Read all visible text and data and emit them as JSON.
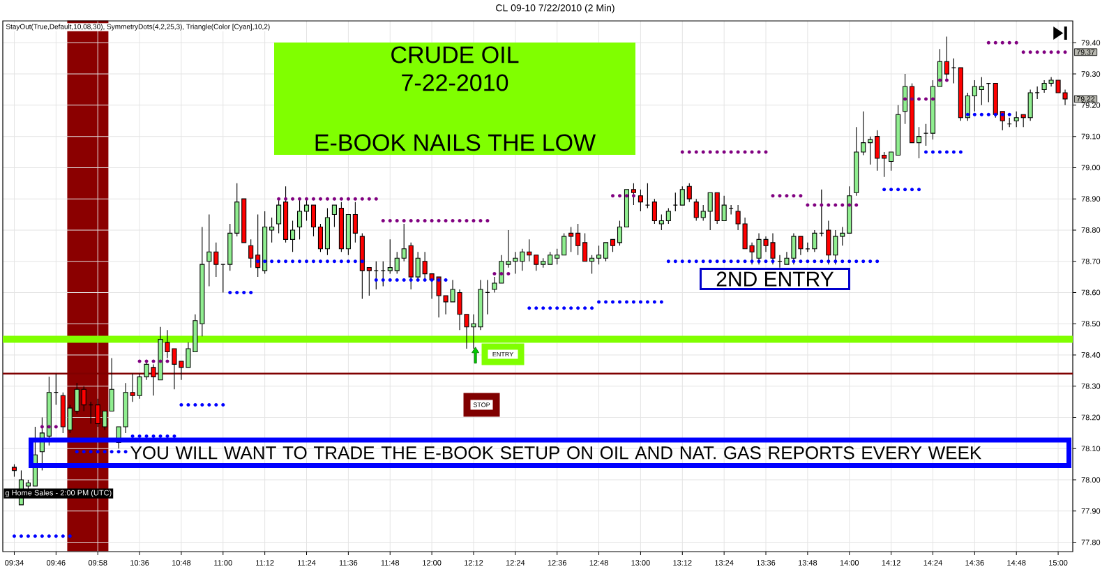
{
  "chart_data": {
    "type": "candlestick",
    "title": "CL 09-10  7/22/2010 (2 Min)",
    "subtitle": "StayOut(True,Default,10,08,30), SymmetryDots(4,2,25,3), Triangle(Color [Cyan],10,2)",
    "categories": [
      "09:34",
      null,
      null,
      null,
      null,
      null,
      "09:46",
      null,
      null,
      null,
      null,
      null,
      "09:58",
      null,
      null,
      null,
      null,
      null,
      "10:36",
      null,
      null,
      null,
      null,
      null,
      "10:48",
      null,
      null,
      null,
      null,
      null,
      "11:00",
      null,
      null,
      null,
      null,
      null,
      "11:12",
      null,
      null,
      null,
      null,
      null,
      "11:24",
      null,
      null,
      null,
      null,
      null,
      "11:36",
      null,
      null,
      null,
      null,
      null,
      "11:48",
      null,
      null,
      null,
      null,
      null,
      "12:00",
      null,
      null,
      null,
      null,
      null,
      "12:12",
      null,
      null,
      null,
      null,
      null,
      "12:24",
      null,
      null,
      null,
      null,
      null,
      "12:36",
      null,
      null,
      null,
      null,
      null,
      "12:48",
      null,
      null,
      null,
      null,
      null,
      "13:00",
      null,
      null,
      null,
      null,
      null,
      "13:12",
      null,
      null,
      null,
      null,
      null,
      "13:24",
      null,
      null,
      null,
      null,
      null,
      "13:36",
      null,
      null,
      null,
      null,
      null,
      "13:48",
      null,
      null,
      null,
      null,
      null,
      "14:00",
      null,
      null,
      null,
      null,
      null,
      "14:12",
      null,
      null,
      null,
      null,
      null,
      "14:24",
      null,
      null,
      null,
      null,
      null,
      "14:36",
      null,
      null,
      null,
      null,
      null,
      "14:48",
      null,
      null,
      null,
      null,
      null,
      "15:00",
      null
    ],
    "ohlc": [
      [
        78.04,
        78.05,
        78.01,
        78.03
      ],
      [
        77.92,
        78.03,
        77.92,
        78.0
      ],
      [
        77.98,
        78.0,
        77.97,
        77.99
      ],
      [
        77.98,
        78.17,
        77.98,
        78.08
      ],
      [
        78.09,
        78.2,
        78.03,
        78.15
      ],
      [
        78.14,
        78.33,
        78.11,
        78.28
      ],
      [
        78.28,
        78.34,
        78.24,
        78.28
      ],
      [
        78.27,
        78.28,
        78.15,
        78.17
      ],
      [
        78.16,
        78.24,
        78.15,
        78.23
      ],
      [
        78.22,
        78.31,
        78.21,
        78.29
      ],
      [
        78.29,
        78.3,
        78.22,
        78.24
      ],
      [
        78.24,
        78.25,
        78.18,
        78.24
      ],
      [
        78.24,
        78.26,
        78.17,
        78.18
      ],
      [
        78.17,
        78.22,
        78.16,
        78.22
      ],
      [
        78.22,
        78.39,
        78.22,
        78.29
      ],
      [
        78.12,
        78.17,
        78.1,
        78.17
      ],
      [
        78.17,
        78.31,
        78.15,
        78.28
      ],
      [
        78.28,
        78.34,
        78.25,
        78.27
      ],
      [
        78.27,
        78.34,
        78.26,
        78.33
      ],
      [
        78.33,
        78.38,
        78.32,
        78.37
      ],
      [
        78.36,
        78.37,
        78.27,
        78.33
      ],
      [
        78.32,
        78.49,
        78.32,
        78.45
      ],
      [
        78.44,
        78.48,
        78.39,
        78.41
      ],
      [
        78.42,
        78.42,
        78.29,
        78.37
      ],
      [
        78.38,
        78.38,
        78.32,
        78.36
      ],
      [
        78.36,
        78.44,
        78.36,
        78.42
      ],
      [
        78.41,
        78.53,
        78.41,
        78.51
      ],
      [
        78.5,
        78.81,
        78.46,
        78.69
      ],
      [
        78.7,
        78.85,
        78.62,
        78.73
      ],
      [
        78.73,
        78.76,
        78.65,
        78.69
      ],
      [
        78.69,
        78.69,
        78.6,
        78.69
      ],
      [
        78.69,
        78.82,
        78.67,
        78.79
      ],
      [
        78.79,
        78.95,
        78.78,
        78.89
      ],
      [
        78.9,
        78.9,
        78.76,
        78.76
      ],
      [
        78.75,
        78.77,
        78.68,
        78.71
      ],
      [
        78.72,
        78.85,
        78.65,
        78.68
      ],
      [
        78.67,
        78.86,
        78.66,
        78.81
      ],
      [
        78.8,
        78.84,
        78.76,
        78.81
      ],
      [
        78.82,
        78.9,
        78.79,
        78.88
      ],
      [
        78.89,
        78.94,
        78.76,
        78.77
      ],
      [
        78.77,
        78.83,
        78.73,
        78.8
      ],
      [
        78.81,
        78.9,
        78.77,
        78.86
      ],
      [
        78.86,
        78.9,
        78.83,
        78.88
      ],
      [
        78.88,
        78.88,
        78.78,
        78.81
      ],
      [
        78.81,
        78.82,
        78.73,
        78.74
      ],
      [
        78.74,
        78.87,
        78.72,
        78.84
      ],
      [
        78.85,
        78.88,
        78.81,
        78.88
      ],
      [
        78.87,
        78.89,
        78.73,
        78.74
      ],
      [
        78.74,
        78.85,
        78.72,
        78.85
      ],
      [
        78.85,
        78.89,
        78.76,
        78.79
      ],
      [
        78.78,
        78.79,
        78.58,
        78.67
      ],
      [
        78.68,
        78.68,
        78.59,
        78.67
      ],
      [
        78.67,
        78.7,
        78.61,
        78.67
      ],
      [
        78.67,
        78.7,
        78.62,
        78.67
      ],
      [
        78.67,
        78.77,
        78.66,
        78.68
      ],
      [
        78.67,
        78.73,
        78.66,
        78.71
      ],
      [
        78.71,
        78.82,
        78.7,
        78.74
      ],
      [
        78.75,
        78.76,
        78.61,
        78.65
      ],
      [
        78.65,
        78.73,
        78.64,
        78.71
      ],
      [
        78.7,
        78.73,
        78.64,
        78.66
      ],
      [
        78.66,
        78.66,
        78.58,
        78.64
      ],
      [
        78.65,
        78.65,
        78.52,
        78.59
      ],
      [
        78.59,
        78.59,
        78.53,
        78.57
      ],
      [
        78.57,
        78.64,
        78.57,
        78.61
      ],
      [
        78.6,
        78.61,
        78.48,
        78.53
      ],
      [
        78.53,
        78.53,
        78.42,
        78.49
      ],
      [
        78.49,
        78.53,
        78.42,
        78.5
      ],
      [
        78.49,
        78.64,
        78.48,
        78.61
      ],
      [
        78.6,
        78.64,
        78.53,
        78.6
      ],
      [
        78.61,
        78.65,
        78.6,
        78.63
      ],
      [
        78.63,
        78.72,
        78.63,
        78.7
      ],
      [
        78.69,
        78.8,
        78.68,
        78.7
      ],
      [
        78.7,
        78.73,
        78.66,
        78.71
      ],
      [
        78.7,
        78.74,
        78.67,
        78.73
      ],
      [
        78.73,
        78.77,
        78.7,
        78.72
      ],
      [
        78.72,
        78.72,
        78.67,
        78.69
      ],
      [
        78.69,
        78.71,
        78.68,
        78.7
      ],
      [
        78.69,
        78.73,
        78.69,
        78.72
      ],
      [
        78.71,
        78.74,
        78.69,
        78.72
      ],
      [
        78.72,
        78.79,
        78.72,
        78.78
      ],
      [
        78.79,
        78.81,
        78.73,
        78.78
      ],
      [
        78.79,
        78.82,
        78.72,
        78.75
      ],
      [
        78.76,
        78.79,
        78.7,
        78.7
      ],
      [
        78.7,
        78.72,
        78.66,
        78.71
      ],
      [
        78.71,
        78.75,
        78.69,
        78.72
      ],
      [
        78.71,
        78.76,
        78.7,
        78.76
      ],
      [
        78.77,
        78.77,
        78.73,
        78.75
      ],
      [
        78.76,
        78.83,
        78.75,
        78.81
      ],
      [
        78.81,
        78.93,
        78.81,
        78.93
      ],
      [
        78.93,
        78.95,
        78.88,
        78.92
      ],
      [
        78.91,
        78.93,
        78.86,
        78.89
      ],
      [
        78.88,
        78.95,
        78.87,
        78.88
      ],
      [
        78.89,
        78.9,
        78.82,
        78.83
      ],
      [
        78.82,
        78.85,
        78.8,
        78.83
      ],
      [
        78.83,
        78.87,
        78.82,
        78.86
      ],
      [
        78.88,
        78.92,
        78.86,
        78.88
      ],
      [
        78.88,
        78.94,
        78.88,
        78.93
      ],
      [
        78.94,
        78.95,
        78.89,
        78.9
      ],
      [
        78.89,
        78.9,
        78.83,
        78.84
      ],
      [
        78.84,
        78.88,
        78.83,
        78.86
      ],
      [
        78.86,
        78.92,
        78.8,
        78.92
      ],
      [
        78.92,
        78.92,
        78.82,
        78.83
      ],
      [
        78.83,
        78.91,
        78.83,
        78.88
      ],
      [
        78.87,
        78.88,
        78.85,
        78.87
      ],
      [
        78.86,
        78.88,
        78.8,
        78.82
      ],
      [
        78.82,
        78.84,
        78.74,
        78.74
      ],
      [
        78.75,
        78.76,
        78.69,
        78.73
      ],
      [
        78.71,
        78.79,
        78.69,
        78.77
      ],
      [
        78.77,
        78.78,
        78.73,
        78.75
      ],
      [
        78.76,
        78.79,
        78.69,
        78.71
      ],
      [
        78.7,
        78.72,
        78.68,
        78.7
      ],
      [
        78.69,
        78.73,
        78.69,
        78.71
      ],
      [
        78.71,
        78.79,
        78.69,
        78.78
      ],
      [
        78.78,
        78.78,
        78.72,
        78.74
      ],
      [
        78.74,
        78.76,
        78.73,
        78.74
      ],
      [
        78.74,
        78.8,
        78.73,
        78.79
      ],
      [
        78.79,
        78.93,
        78.78,
        78.79
      ],
      [
        78.8,
        78.83,
        78.69,
        78.72
      ],
      [
        78.72,
        78.8,
        78.69,
        78.78
      ],
      [
        78.78,
        78.81,
        78.75,
        78.79
      ],
      [
        78.79,
        78.94,
        78.79,
        78.91
      ],
      [
        78.92,
        79.13,
        78.91,
        79.05
      ],
      [
        79.05,
        79.18,
        79.04,
        79.08
      ],
      [
        79.08,
        79.1,
        79.01,
        79.09
      ],
      [
        79.1,
        79.12,
        78.99,
        79.03
      ],
      [
        79.04,
        79.05,
        78.97,
        79.03
      ],
      [
        79.02,
        79.05,
        78.99,
        79.05
      ],
      [
        79.04,
        79.2,
        79.04,
        79.17
      ],
      [
        79.18,
        79.3,
        79.14,
        79.26
      ],
      [
        79.26,
        79.27,
        79.08,
        79.08
      ],
      [
        79.08,
        79.13,
        79.03,
        79.1
      ],
      [
        79.11,
        79.14,
        79.07,
        79.11
      ],
      [
        79.11,
        79.28,
        79.09,
        79.26
      ],
      [
        79.26,
        79.38,
        79.26,
        79.34
      ],
      [
        79.34,
        79.42,
        79.28,
        79.3
      ],
      [
        79.32,
        79.35,
        79.27,
        79.32
      ],
      [
        79.32,
        79.32,
        79.15,
        79.16
      ],
      [
        79.16,
        79.24,
        79.15,
        79.23
      ],
      [
        79.23,
        79.28,
        79.18,
        79.26
      ],
      [
        79.25,
        79.29,
        79.2,
        79.26
      ],
      [
        79.27,
        79.27,
        79.21,
        79.27
      ],
      [
        79.27,
        79.27,
        79.16,
        79.17
      ],
      [
        79.18,
        79.18,
        79.12,
        79.15
      ],
      [
        79.14,
        79.16,
        79.13,
        79.14
      ],
      [
        79.15,
        79.18,
        79.13,
        79.16
      ],
      [
        79.17,
        79.17,
        79.13,
        79.16
      ],
      [
        79.16,
        79.25,
        79.15,
        79.24
      ],
      [
        79.24,
        79.26,
        79.22,
        79.24
      ],
      [
        79.25,
        79.28,
        79.24,
        79.27
      ],
      [
        79.27,
        79.29,
        79.26,
        79.28
      ],
      [
        79.28,
        79.28,
        79.24,
        79.24
      ],
      [
        79.24,
        79.25,
        79.2,
        79.22
      ]
    ],
    "colors": [
      "#ff0000",
      "#90ee90",
      "#90ee90",
      "#90ee90",
      "#90ee90",
      "#90ee90",
      "#000000",
      "#ff0000",
      "#90ee90",
      "#90ee90",
      "#ff0000",
      "#000000",
      "#ff0000",
      "#90ee90",
      "#90ee90",
      "#90ee90",
      "#90ee90",
      "#ff0000",
      "#90ee90",
      "#90ee90",
      "#ff0000",
      "#90ee90",
      "#ff0000",
      "#ff0000",
      "#ff0000",
      "#90ee90",
      "#90ee90",
      "#90ee90",
      "#90ee90",
      "#ff0000",
      "#000000",
      "#90ee90",
      "#90ee90",
      "#ff0000",
      "#ff0000",
      "#ff0000",
      "#90ee90",
      "#90ee90",
      "#90ee90",
      "#ff0000",
      "#90ee90",
      "#90ee90",
      "#90ee90",
      "#ff0000",
      "#ff0000",
      "#90ee90",
      "#90ee90",
      "#ff0000",
      "#90ee90",
      "#ff0000",
      "#ff0000",
      "#ff0000",
      "#000000",
      "#000000",
      "#90ee90",
      "#90ee90",
      "#90ee90",
      "#ff0000",
      "#90ee90",
      "#ff0000",
      "#ff0000",
      "#ff0000",
      "#ff0000",
      "#90ee90",
      "#ff0000",
      "#ff0000",
      "#90ee90",
      "#90ee90",
      "#000000",
      "#90ee90",
      "#90ee90",
      "#90ee90",
      "#90ee90",
      "#90ee90",
      "#ff0000",
      "#ff0000",
      "#90ee90",
      "#90ee90",
      "#90ee90",
      "#90ee90",
      "#ff0000",
      "#ff0000",
      "#ff0000",
      "#90ee90",
      "#90ee90",
      "#90ee90",
      "#ff0000",
      "#90ee90",
      "#90ee90",
      "#ff0000",
      "#ff0000",
      "#000000",
      "#ff0000",
      "#90ee90",
      "#90ee90",
      "#000000",
      "#90ee90",
      "#ff0000",
      "#ff0000",
      "#90ee90",
      "#90ee90",
      "#ff0000",
      "#90ee90",
      "#000000",
      "#ff0000",
      "#ff0000",
      "#ff0000",
      "#90ee90",
      "#ff0000",
      "#ff0000",
      "#000000",
      "#90ee90",
      "#90ee90",
      "#ff0000",
      "#000000",
      "#90ee90",
      "#000000",
      "#ff0000",
      "#90ee90",
      "#90ee90",
      "#90ee90",
      "#90ee90",
      "#90ee90",
      "#90ee90",
      "#ff0000",
      "#ff0000",
      "#90ee90",
      "#90ee90",
      "#90ee90",
      "#ff0000",
      "#90ee90",
      "#000000",
      "#90ee90",
      "#90ee90",
      "#ff0000",
      "#000000",
      "#ff0000",
      "#90ee90",
      "#90ee90",
      "#90ee90",
      "#000000",
      "#ff0000",
      "#ff0000",
      "#000000",
      "#90ee90",
      "#ff0000",
      "#90ee90",
      "#000000",
      "#90ee90",
      "#90ee90",
      "#ff0000",
      "#ff0000"
    ],
    "series": [
      {
        "type": "scatter",
        "color": "#800080",
        "values": [
          null,
          null,
          null,
          null,
          78.17,
          78.17,
          78.17,
          null,
          null,
          null,
          null,
          null,
          null,
          null,
          null,
          null,
          null,
          null,
          78.38,
          78.38,
          78.38,
          78.38,
          78.38,
          null,
          null,
          null,
          null,
          null,
          null,
          null,
          null,
          null,
          null,
          null,
          null,
          null,
          null,
          null,
          78.9,
          78.9,
          78.9,
          78.9,
          78.9,
          78.9,
          78.9,
          78.9,
          78.9,
          78.9,
          78.9,
          78.9,
          78.9,
          78.9,
          78.9,
          78.83,
          78.83,
          78.83,
          78.83,
          78.83,
          78.83,
          78.83,
          78.83,
          78.83,
          78.83,
          78.83,
          78.83,
          78.83,
          78.83,
          78.83,
          78.83,
          78.66,
          78.66,
          78.66,
          null,
          null,
          null,
          null,
          null,
          null,
          null,
          null,
          null,
          null,
          null,
          null,
          null,
          null,
          78.91,
          78.91,
          78.91,
          78.91,
          null,
          null,
          null,
          null,
          null,
          null,
          79.05,
          79.05,
          79.05,
          79.05,
          79.05,
          79.05,
          79.05,
          79.05,
          79.05,
          79.05,
          79.05,
          79.05,
          79.05,
          78.91,
          78.91,
          78.91,
          78.91,
          78.91,
          78.88,
          78.88,
          78.88,
          78.88,
          78.88,
          78.88,
          78.88,
          78.88,
          null,
          null,
          null,
          null,
          null,
          null,
          79.22,
          79.22,
          79.22,
          79.22,
          79.22,
          79.28,
          79.28,
          null,
          null,
          null,
          null,
          null,
          79.4,
          79.4,
          79.4,
          79.4,
          79.4,
          79.37,
          79.37,
          79.37,
          79.37,
          79.37,
          79.37,
          79.37
        ]
      },
      {
        "type": "scatter",
        "color": "#0000ff",
        "values": [
          77.82,
          77.82,
          77.82,
          77.82,
          77.82,
          77.82,
          77.82,
          77.82,
          77.82,
          78.09,
          78.09,
          78.09,
          78.09,
          78.09,
          78.09,
          78.09,
          78.09,
          78.14,
          78.14,
          78.14,
          78.14,
          78.14,
          78.14,
          78.14,
          78.24,
          78.24,
          78.24,
          78.24,
          78.24,
          78.24,
          78.24,
          78.6,
          78.6,
          78.6,
          78.6,
          78.7,
          78.7,
          78.7,
          78.7,
          78.7,
          78.7,
          78.7,
          78.7,
          78.7,
          78.7,
          78.7,
          78.7,
          78.7,
          78.7,
          78.7,
          78.7,
          null,
          78.64,
          78.64,
          78.64,
          78.64,
          78.64,
          78.64,
          78.64,
          78.64,
          78.64,
          78.64,
          78.64,
          null,
          null,
          null,
          null,
          null,
          null,
          null,
          null,
          null,
          null,
          null,
          78.55,
          78.55,
          78.55,
          78.55,
          78.55,
          78.55,
          78.55,
          78.55,
          78.55,
          78.55,
          78.57,
          78.57,
          78.57,
          78.57,
          78.57,
          78.57,
          78.57,
          78.57,
          78.57,
          78.57,
          78.7,
          78.7,
          78.7,
          78.7,
          78.7,
          78.7,
          78.7,
          78.7,
          78.7,
          78.7,
          78.7,
          78.7,
          78.7,
          78.7,
          78.7,
          78.7,
          null,
          null,
          78.7,
          78.7,
          78.7,
          78.7,
          78.7,
          78.7,
          78.7,
          78.7,
          78.7,
          78.7,
          78.7,
          78.7,
          78.7,
          78.93,
          78.93,
          78.93,
          78.93,
          78.93,
          78.93,
          79.05,
          79.05,
          79.05,
          79.05,
          79.05,
          79.05,
          79.17,
          79.17,
          79.17,
          79.17,
          79.17,
          79.17,
          79.17,
          null,
          null,
          null,
          null,
          null,
          null,
          null,
          null
        ]
      }
    ],
    "marker": "circle",
    "ylim": [
      77.77,
      79.47
    ],
    "yticks": [
      {
        "value": 77.8,
        "label": "77.80"
      },
      {
        "value": 77.9,
        "label": "77.90"
      },
      {
        "value": 78.0,
        "label": "78.00"
      },
      {
        "value": 78.1,
        "label": "78.10"
      },
      {
        "value": 78.2,
        "label": "78.20"
      },
      {
        "value": 78.3,
        "label": "78.30"
      },
      {
        "value": 78.4,
        "label": "78.40"
      },
      {
        "value": 78.5,
        "label": "78.50"
      },
      {
        "value": 78.6,
        "label": "78.60"
      },
      {
        "value": 78.7,
        "label": "78.70"
      },
      {
        "value": 78.8,
        "label": "78.80"
      },
      {
        "value": 78.9,
        "label": "78.90"
      },
      {
        "value": 79.0,
        "label": "79.00"
      },
      {
        "value": 79.1,
        "label": "79.10"
      },
      {
        "value": 79.2,
        "label": "79.20"
      },
      {
        "value": 79.3,
        "label": "79.30"
      },
      {
        "value": 79.4,
        "label": "79.40"
      }
    ],
    "grid": true,
    "ref_lines": [
      {
        "axis": "y",
        "value": 78.45,
        "color": "#80ff00"
      },
      {
        "axis": "y",
        "value": 78.34,
        "color": "#800000"
      }
    ],
    "annotations": [
      "CRUDE OIL",
      "7-22-2010",
      "E-BOOK NAILS THE LOW",
      "ENTRY",
      "STOP",
      "2ND ENTRY",
      "YOU WILL WANT TO TRADE THE E-BOOK SETUP ON OIL AND NAT. GAS REPORTS EVERY WEEK",
      "g Home Sales - 2:00 PM (UTC)",
      {
        "text": "79.37",
        "y": 79.37
      },
      {
        "text": "79.22",
        "y": 79.22
      }
    ]
  }
}
